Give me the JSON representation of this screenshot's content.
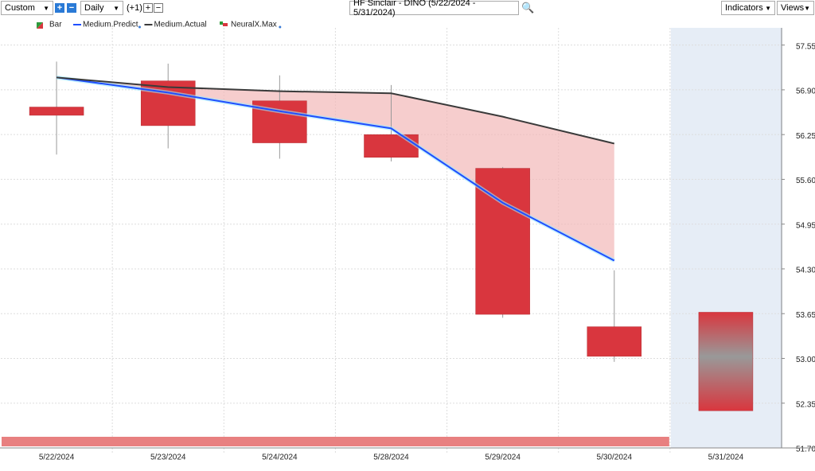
{
  "toolbar": {
    "range": "Custom",
    "period": "Daily",
    "offset": "(+1)",
    "symbol": "HF Sinclair - DINO (5/22/2024 - 5/31/2024)",
    "indicators": "Indicators",
    "views": "Views"
  },
  "chart_data": {
    "type": "candlestick",
    "categories": [
      "5/22/2024",
      "5/23/2024",
      "5/24/2024",
      "5/28/2024",
      "5/29/2024",
      "5/30/2024",
      "5/31/2024"
    ],
    "bar_name": "Bar",
    "color": "#d9363e",
    "open": [
      56.65,
      57.03,
      56.74,
      56.25,
      55.76,
      53.46,
      53.67
    ],
    "close": [
      56.53,
      56.38,
      56.13,
      55.92,
      53.64,
      53.03,
      52.24
    ],
    "high": [
      57.31,
      57.28,
      57.11,
      56.97,
      55.78,
      54.28,
      null
    ],
    "low": [
      55.96,
      56.05,
      55.9,
      55.86,
      53.59,
      52.95,
      null
    ],
    "series": [
      {
        "name": "Medium.Predict",
        "color": "#1f4fff",
        "values": [
          57.08,
          56.86,
          56.59,
          56.34,
          55.26,
          54.42,
          null
        ]
      },
      {
        "name": "Medium.Actual",
        "color": "#3a3a3a",
        "values": [
          57.08,
          56.94,
          56.88,
          56.85,
          56.51,
          56.12,
          null
        ]
      }
    ],
    "band": {
      "name": "NeuralX.Max",
      "color": "#e88080"
    },
    "ylim": [
      51.7,
      57.8
    ],
    "yticks": [
      {
        "value": 51.7,
        "label": "51.70"
      },
      52.35,
      {
        "value": 53.0,
        "label": "53.00"
      },
      53.65,
      {
        "value": 54.3,
        "label": "54.30"
      },
      54.95,
      {
        "value": 55.6,
        "label": "55.60"
      },
      56.25,
      {
        "value": 56.9,
        "label": "56.90"
      },
      57.55
    ],
    "grid": true
  }
}
